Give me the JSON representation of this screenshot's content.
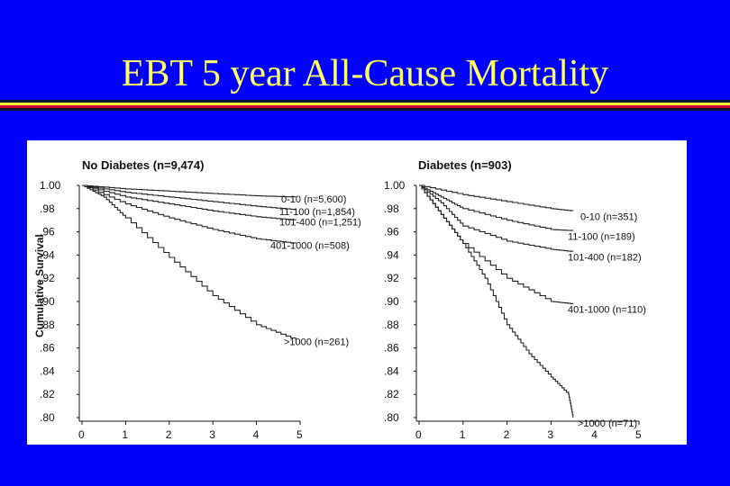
{
  "slide": {
    "title": "EBT 5 year All-Cause Mortality",
    "background_color": "#0000ff",
    "title_color": "#ffff66"
  },
  "chart_data": [
    {
      "type": "line",
      "title": "No Diabetes (n=9,474)",
      "xlabel": "",
      "ylabel": "Cumulative Survival",
      "x_ticks": [
        "0",
        "1",
        "2",
        "3",
        "4",
        "5"
      ],
      "y_ticks": [
        "1.00",
        ".98",
        ".96",
        ".94",
        ".92",
        ".90",
        ".88",
        ".86",
        ".84",
        ".82",
        ".80"
      ],
      "xlim": [
        0,
        5
      ],
      "ylim": [
        0.8,
        1.0
      ],
      "series": [
        {
          "name": "0-10 (n=5,600)",
          "x": [
            0,
            1,
            2,
            3,
            4,
            4.9
          ],
          "y": [
            1.0,
            0.997,
            0.995,
            0.993,
            0.991,
            0.99
          ]
        },
        {
          "name": "11-100 (n=1,854)",
          "x": [
            0,
            1,
            2,
            3,
            4,
            4.9
          ],
          "y": [
            1.0,
            0.994,
            0.99,
            0.986,
            0.982,
            0.979
          ]
        },
        {
          "name": "101-400 (n=1,251)",
          "x": [
            0,
            1,
            2,
            3,
            4,
            4.9
          ],
          "y": [
            1.0,
            0.99,
            0.984,
            0.978,
            0.973,
            0.97
          ]
        },
        {
          "name": "401-1000 (n=508)",
          "x": [
            0,
            1,
            2,
            3,
            4,
            4.9
          ],
          "y": [
            1.0,
            0.984,
            0.972,
            0.962,
            0.954,
            0.95
          ]
        },
        {
          "name": ">1000 (n=261)",
          "x": [
            0,
            0.5,
            1,
            2,
            3,
            4,
            4.9
          ],
          "y": [
            1.0,
            0.99,
            0.972,
            0.938,
            0.905,
            0.88,
            0.867
          ]
        }
      ]
    },
    {
      "type": "line",
      "title": "Diabetes (n=903)",
      "xlabel": "",
      "ylabel": "",
      "x_ticks": [
        "0",
        "1",
        "2",
        "3",
        "4",
        "5"
      ],
      "y_ticks": [
        "1.00",
        ".98",
        ".96",
        ".94",
        ".92",
        ".90",
        ".88",
        ".86",
        ".84",
        ".82",
        ".80"
      ],
      "xlim": [
        0,
        5
      ],
      "ylim": [
        0.8,
        1.0
      ],
      "series": [
        {
          "name": "0-10 (n=351)",
          "x": [
            0,
            1,
            2,
            3,
            3.5
          ],
          "y": [
            1.0,
            0.992,
            0.986,
            0.98,
            0.978
          ]
        },
        {
          "name": "11-100 (n=189)",
          "x": [
            0,
            0.5,
            1,
            2,
            3,
            3.5
          ],
          "y": [
            1.0,
            0.99,
            0.98,
            0.97,
            0.962,
            0.961
          ]
        },
        {
          "name": "101-400 (n=182)",
          "x": [
            0,
            0.5,
            1,
            2,
            3,
            3.5
          ],
          "y": [
            1.0,
            0.985,
            0.965,
            0.952,
            0.945,
            0.943
          ]
        },
        {
          "name": "401-1000 (n=110)",
          "x": [
            0,
            0.5,
            1,
            2,
            3,
            3.5
          ],
          "y": [
            1.0,
            0.975,
            0.95,
            0.92,
            0.9,
            0.898
          ]
        },
        {
          "name": ">1000 (n=71)",
          "x": [
            0,
            0.5,
            1,
            1.5,
            2,
            2.5,
            3,
            3.4,
            3.5
          ],
          "y": [
            1.0,
            0.975,
            0.95,
            0.92,
            0.88,
            0.855,
            0.835,
            0.82,
            0.8
          ]
        }
      ]
    }
  ]
}
